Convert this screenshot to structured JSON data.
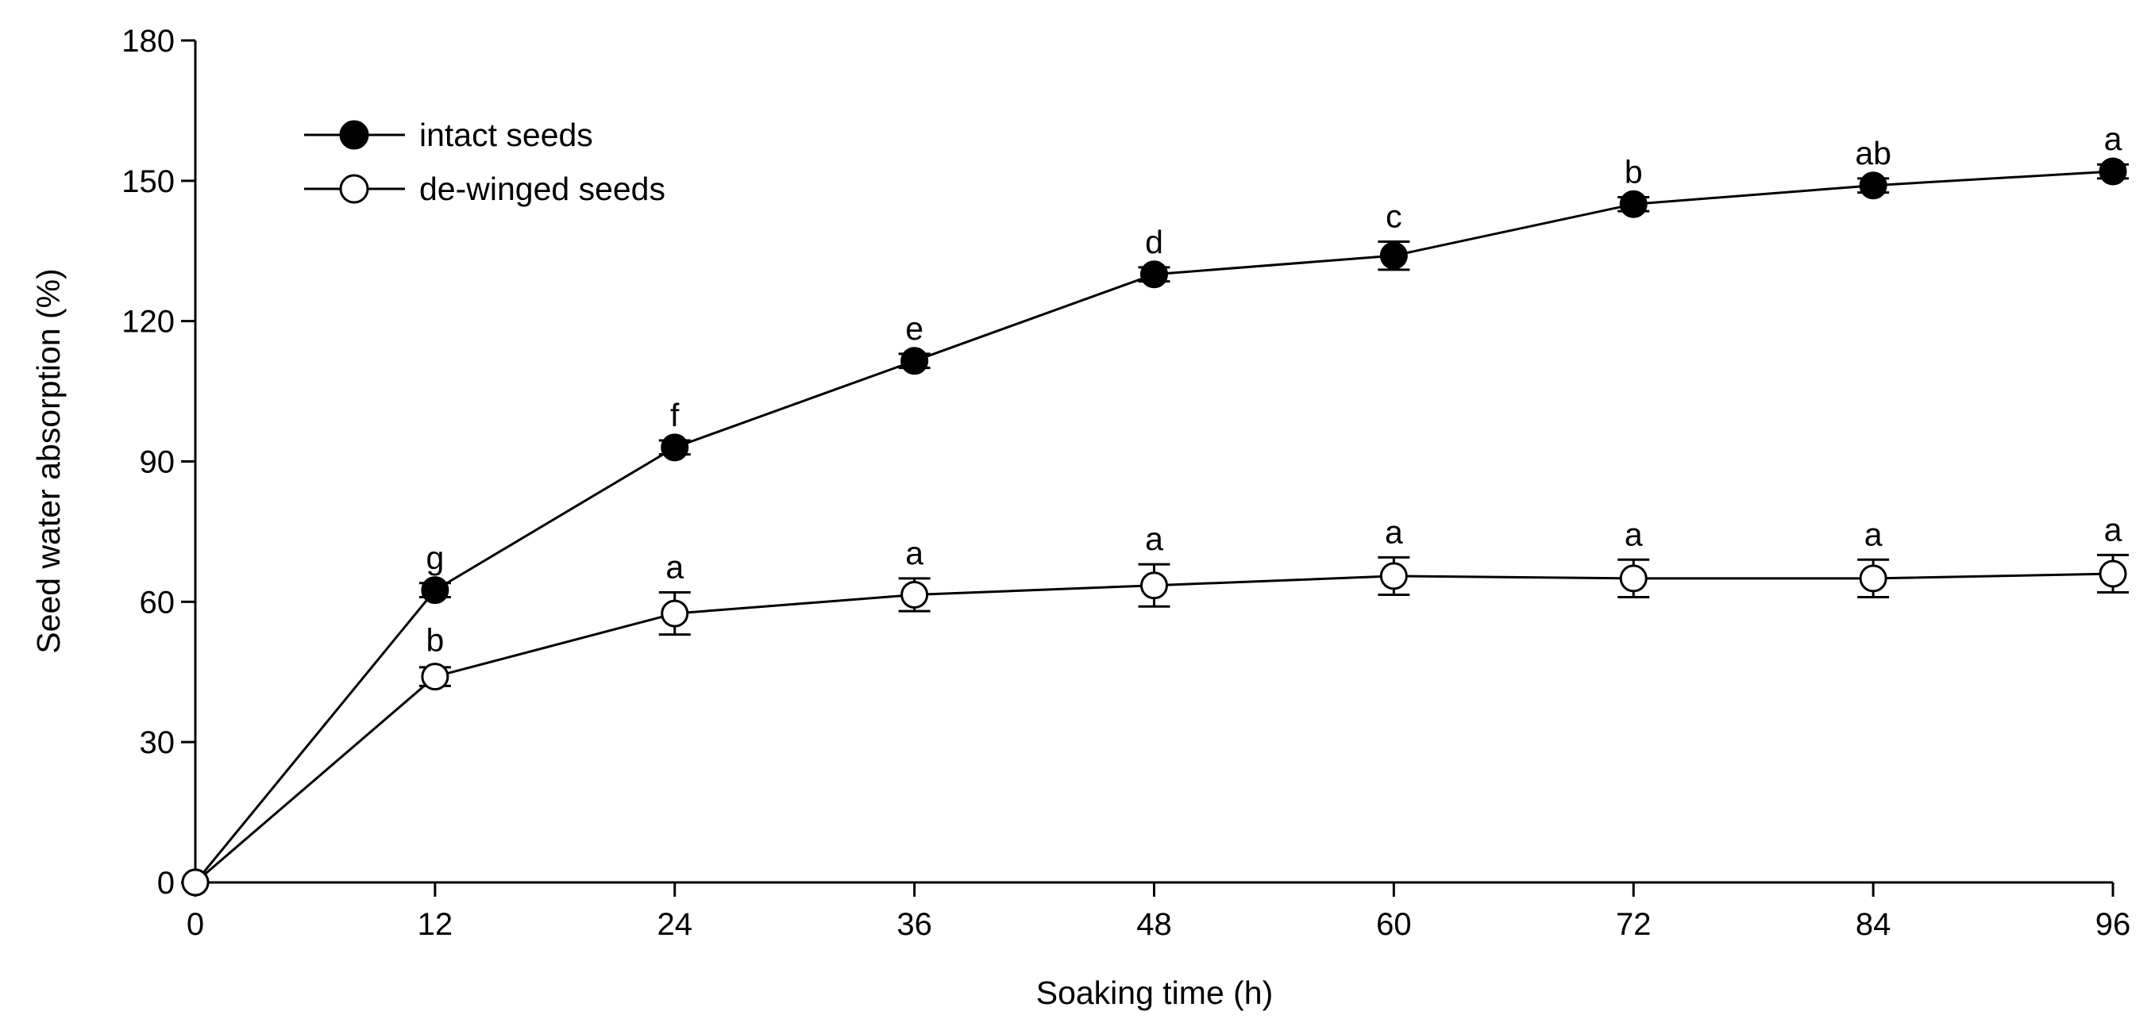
{
  "chart_data": {
    "type": "line",
    "title": "",
    "xlabel": "Soaking time (h)",
    "ylabel": "Seed water absorption (%)",
    "xlim": [
      0,
      96
    ],
    "ylim": [
      0,
      180
    ],
    "xticks": [
      0,
      12,
      24,
      36,
      48,
      60,
      72,
      84,
      96
    ],
    "yticks": [
      0,
      30,
      60,
      90,
      120,
      150,
      180
    ],
    "legend_position": "top-left",
    "series": [
      {
        "name": "intact seeds",
        "marker": "filled-circle",
        "x": [
          0,
          12,
          24,
          36,
          48,
          60,
          72,
          84,
          96
        ],
        "y": [
          0,
          62.5,
          93,
          111.5,
          130,
          134,
          145,
          149,
          152
        ],
        "err": [
          0,
          1.5,
          1.5,
          1.5,
          1.5,
          3,
          1.5,
          1.5,
          1.5
        ],
        "labels": [
          "",
          "g",
          "f",
          "e",
          "d",
          "c",
          "b",
          "ab",
          "a"
        ]
      },
      {
        "name": "de-winged seeds",
        "marker": "open-circle",
        "x": [
          0,
          12,
          24,
          36,
          48,
          60,
          72,
          84,
          96
        ],
        "y": [
          0,
          44,
          57.5,
          61.5,
          63.5,
          65.5,
          65,
          65,
          66
        ],
        "err": [
          0,
          2,
          4.5,
          3.5,
          4.5,
          4,
          4,
          4,
          4
        ],
        "labels": [
          "",
          "b",
          "a",
          "a",
          "a",
          "a",
          "a",
          "a",
          "a"
        ]
      }
    ]
  }
}
